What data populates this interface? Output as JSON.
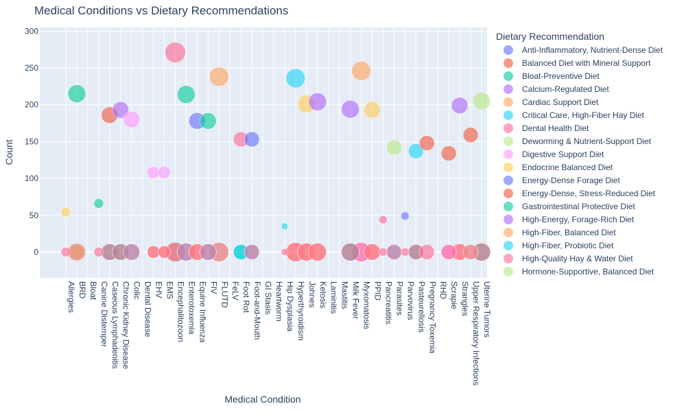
{
  "chart_data": {
    "type": "scatter",
    "title": "Medical Conditions vs Dietary Recommendations",
    "xlabel": "Medical Condition",
    "ylabel": "Count",
    "ylim": [
      -35,
      305
    ],
    "y_ticks": [
      0,
      50,
      100,
      150,
      200,
      250,
      300
    ],
    "grid": true,
    "legend_title": "Dietary Recommendation",
    "legend_position": "right",
    "categories": [
      "Allergies",
      "BRD",
      "Bloat",
      "Canine Distemper",
      "Caseous Lymphadenitis",
      "Chronic Kidney Disease",
      "Colic",
      "Dental Disease",
      "EHV",
      "EMS",
      "Encephalitozoon",
      "Enterotoxemia",
      "Equine Influenza",
      "FIV",
      "FLUTD",
      "FeLV",
      "Foot Rot",
      "Foot-and-Mouth",
      "GI Stasis",
      "Heartworm",
      "Hip Dysplasia",
      "Hyperthyroidism",
      "Johnes",
      "Ketosis",
      "Laminitis",
      "Mastitis",
      "Milk Fever",
      "Myxomatosis",
      "PPID",
      "Pancreatitis",
      "Parasites",
      "Parvovirus",
      "Pasteurellosis",
      "Pregnancy Toxemia",
      "RHD",
      "Scrapie",
      "Strangles",
      "Upper Respiratory Infections",
      "Uterine Tumors"
    ],
    "series": [
      {
        "name": "Anti-Inflammatory, Nutrient-Dense Diet",
        "color": "#636efa"
      },
      {
        "name": "Balanced Diet with Mineral Support",
        "color": "#EF553B"
      },
      {
        "name": "Bloat-Preventive Diet",
        "color": "#00cc96"
      },
      {
        "name": "Calcium-Regulated Diet",
        "color": "#ab63fa"
      },
      {
        "name": "Cardiac Support Diet",
        "color": "#FFA15A"
      },
      {
        "name": "Critical Care, High-Fiber Hay Diet",
        "color": "#19d3f3"
      },
      {
        "name": "Dental Health Diet",
        "color": "#FF6692"
      },
      {
        "name": "Deworming & Nutrient-Support Diet",
        "color": "#B6E880"
      },
      {
        "name": "Digestive Support Diet",
        "color": "#FF97FF"
      },
      {
        "name": "Endocrine Balanced Diet",
        "color": "#FECB52"
      },
      {
        "name": "Energy-Dense Forage Diet",
        "color": "#636efa"
      },
      {
        "name": "Energy-Dense, Stress-Reduced Diet",
        "color": "#EF553B"
      },
      {
        "name": "Gastrointestinal Protective Diet",
        "color": "#00cc96"
      },
      {
        "name": "High-Energy, Forage-Rich Diet",
        "color": "#ab63fa"
      },
      {
        "name": "High-Fiber, Balanced Diet",
        "color": "#FFA15A"
      },
      {
        "name": "High-Fiber, Probiotic Diet",
        "color": "#19d3f3"
      },
      {
        "name": "High-Quality Hay & Water Diet",
        "color": "#FF6692"
      },
      {
        "name": "Hormone-Supportive, Balanced Diet",
        "color": "#B6E880"
      }
    ],
    "points": [
      {
        "x": "Allergies",
        "y": 54,
        "series": 9,
        "size": 7
      },
      {
        "x": "Allergies",
        "y": 0,
        "series": 16,
        "size": 7
      },
      {
        "x": "BRD",
        "y": 215,
        "series": 2,
        "size": 13
      },
      {
        "x": "BRD",
        "y": 0,
        "series": 5,
        "size": 13
      },
      {
        "x": "BRD",
        "y": 0,
        "series": 4,
        "size": 12
      },
      {
        "x": "BRD",
        "y": 0,
        "series": 16,
        "size": 13
      },
      {
        "x": "Canine Distemper",
        "y": 66,
        "series": 2,
        "size": 7
      },
      {
        "x": "Canine Distemper",
        "y": 0,
        "series": 16,
        "size": 7
      },
      {
        "x": "Caseous Lymphadenitis",
        "y": 186,
        "series": 1,
        "size": 12
      },
      {
        "x": "Caseous Lymphadenitis",
        "y": 0,
        "series": 2,
        "size": 12
      },
      {
        "x": "Caseous Lymphadenitis",
        "y": 0,
        "series": 16,
        "size": 12
      },
      {
        "x": "Chronic Kidney Disease",
        "y": 193,
        "series": 3,
        "size": 12
      },
      {
        "x": "Chronic Kidney Disease",
        "y": 0,
        "series": 2,
        "size": 12
      },
      {
        "x": "Chronic Kidney Disease",
        "y": 0,
        "series": 16,
        "size": 12
      },
      {
        "x": "Colic",
        "y": 180,
        "series": 8,
        "size": 12
      },
      {
        "x": "Colic",
        "y": 0,
        "series": 5,
        "size": 12
      },
      {
        "x": "Colic",
        "y": 0,
        "series": 16,
        "size": 12
      },
      {
        "x": "Dental Disease",
        "y": 0,
        "series": 16,
        "size": 1
      },
      {
        "x": "EHV",
        "y": 108,
        "series": 8,
        "size": 9
      },
      {
        "x": "EHV",
        "y": 0,
        "series": 4,
        "size": 9
      },
      {
        "x": "EHV",
        "y": 0,
        "series": 16,
        "size": 9
      },
      {
        "x": "EMS",
        "y": 108,
        "series": 8,
        "size": 9
      },
      {
        "x": "EMS",
        "y": 0,
        "series": 4,
        "size": 9
      },
      {
        "x": "EMS",
        "y": 0,
        "series": 16,
        "size": 9
      },
      {
        "x": "Encephalitozoon",
        "y": 271,
        "series": 16,
        "size": 15
      },
      {
        "x": "Encephalitozoon",
        "y": 0,
        "series": 5,
        "size": 15
      },
      {
        "x": "Encephalitozoon",
        "y": 0,
        "series": 4,
        "size": 14
      },
      {
        "x": "Encephalitozoon",
        "y": 0,
        "series": 16,
        "size": 14
      },
      {
        "x": "Enterotoxemia",
        "y": 214,
        "series": 2,
        "size": 13
      },
      {
        "x": "Enterotoxemia",
        "y": 0,
        "series": 5,
        "size": 13
      },
      {
        "x": "Enterotoxemia",
        "y": 0,
        "series": 16,
        "size": 13
      },
      {
        "x": "Equine Influenza",
        "y": 178,
        "series": 0,
        "size": 12
      },
      {
        "x": "Equine Influenza",
        "y": 0,
        "series": 4,
        "size": 12
      },
      {
        "x": "Equine Influenza",
        "y": 0,
        "series": 16,
        "size": 12
      },
      {
        "x": "FIV",
        "y": 178,
        "series": 2,
        "size": 12
      },
      {
        "x": "FIV",
        "y": 0,
        "series": 5,
        "size": 12
      },
      {
        "x": "FIV",
        "y": 0,
        "series": 16,
        "size": 12
      },
      {
        "x": "FLUTD",
        "y": 238,
        "series": 4,
        "size": 14
      },
      {
        "x": "FLUTD",
        "y": 0,
        "series": 7,
        "size": 14
      },
      {
        "x": "FLUTD",
        "y": 0,
        "series": 16,
        "size": 14
      },
      {
        "x": "Foot Rot",
        "y": 153,
        "series": 16,
        "size": 11
      },
      {
        "x": "Foot Rot",
        "y": 0,
        "series": 2,
        "size": 11
      },
      {
        "x": "Foot Rot",
        "y": 0,
        "series": 5,
        "size": 11
      },
      {
        "x": "Foot-and-Mouth",
        "y": 153,
        "series": 0,
        "size": 11
      },
      {
        "x": "Foot-and-Mouth",
        "y": 0,
        "series": 5,
        "size": 11
      },
      {
        "x": "Foot-and-Mouth",
        "y": 0,
        "series": 16,
        "size": 11
      },
      {
        "x": "Hip Dysplasia",
        "y": 35,
        "series": 5,
        "size": 5
      },
      {
        "x": "Hip Dysplasia",
        "y": 0,
        "series": 16,
        "size": 5
      },
      {
        "x": "Hyperthyroidism",
        "y": 236,
        "series": 5,
        "size": 14
      },
      {
        "x": "Hyperthyroidism",
        "y": 0,
        "series": 4,
        "size": 14
      },
      {
        "x": "Hyperthyroidism",
        "y": 0,
        "series": 16,
        "size": 14
      },
      {
        "x": "Johnes",
        "y": 201,
        "series": 9,
        "size": 13
      },
      {
        "x": "Johnes",
        "y": 0,
        "series": 4,
        "size": 13
      },
      {
        "x": "Johnes",
        "y": 0,
        "series": 16,
        "size": 13
      },
      {
        "x": "Ketosis",
        "y": 204,
        "series": 3,
        "size": 13
      },
      {
        "x": "Ketosis",
        "y": 0,
        "series": 4,
        "size": 13
      },
      {
        "x": "Ketosis",
        "y": 0,
        "series": 16,
        "size": 13
      },
      {
        "x": "Milk Fever",
        "y": 194,
        "series": 3,
        "size": 13
      },
      {
        "x": "Milk Fever",
        "y": 0,
        "series": 2,
        "size": 13
      },
      {
        "x": "Milk Fever",
        "y": 0,
        "series": 16,
        "size": 13
      },
      {
        "x": "Myxomatosis",
        "y": 246,
        "series": 4,
        "size": 14
      },
      {
        "x": "Myxomatosis",
        "y": 0,
        "series": 8,
        "size": 14
      },
      {
        "x": "Myxomatosis",
        "y": 0,
        "series": 16,
        "size": 14
      },
      {
        "x": "PPID",
        "y": 193,
        "series": 9,
        "size": 12
      },
      {
        "x": "PPID",
        "y": 0,
        "series": 4,
        "size": 12
      },
      {
        "x": "PPID",
        "y": 0,
        "series": 16,
        "size": 12
      },
      {
        "x": "Pancreatitis",
        "y": 44,
        "series": 16,
        "size": 6
      },
      {
        "x": "Pancreatitis",
        "y": 0,
        "series": 16,
        "size": 6
      },
      {
        "x": "Parasites",
        "y": 142,
        "series": 7,
        "size": 11
      },
      {
        "x": "Parasites",
        "y": 0,
        "series": 5,
        "size": 11
      },
      {
        "x": "Parasites",
        "y": 0,
        "series": 16,
        "size": 11
      },
      {
        "x": "Parvovirus",
        "y": 49,
        "series": 0,
        "size": 6
      },
      {
        "x": "Parvovirus",
        "y": 0,
        "series": 16,
        "size": 6
      },
      {
        "x": "Pasteurellosis",
        "y": 137,
        "series": 5,
        "size": 11
      },
      {
        "x": "Pasteurellosis",
        "y": 0,
        "series": 2,
        "size": 11
      },
      {
        "x": "Pasteurellosis",
        "y": 0,
        "series": 16,
        "size": 11
      },
      {
        "x": "Pregnancy Toxemia",
        "y": 148,
        "series": 1,
        "size": 11
      },
      {
        "x": "Pregnancy Toxemia",
        "y": 0,
        "series": 16,
        "size": 11
      },
      {
        "x": "Scrapie",
        "y": 134,
        "series": 1,
        "size": 11
      },
      {
        "x": "Scrapie",
        "y": 0,
        "series": 8,
        "size": 11
      },
      {
        "x": "Scrapie",
        "y": 0,
        "series": 16,
        "size": 11
      },
      {
        "x": "Strangles",
        "y": 199,
        "series": 3,
        "size": 12
      },
      {
        "x": "Strangles",
        "y": 0,
        "series": 4,
        "size": 12
      },
      {
        "x": "Strangles",
        "y": 0,
        "series": 16,
        "size": 12
      },
      {
        "x": "Upper Respiratory Infections",
        "y": 159,
        "series": 1,
        "size": 11
      },
      {
        "x": "Upper Respiratory Infections",
        "y": 0,
        "series": 7,
        "size": 11
      },
      {
        "x": "Upper Respiratory Infections",
        "y": 0,
        "series": 16,
        "size": 11
      },
      {
        "x": "Uterine Tumors",
        "y": 205,
        "series": 7,
        "size": 13
      },
      {
        "x": "Uterine Tumors",
        "y": 0,
        "series": 2,
        "size": 13
      },
      {
        "x": "Uterine Tumors",
        "y": 0,
        "series": 16,
        "size": 13
      }
    ]
  }
}
